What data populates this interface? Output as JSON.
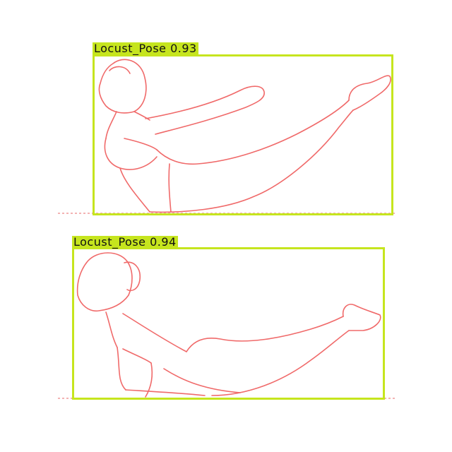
{
  "detections": [
    {
      "label": "Locust_Pose",
      "confidence": "0.93"
    },
    {
      "label": "Locust_Pose",
      "confidence": "0.94"
    }
  ],
  "colors": {
    "box": "#c6e51e",
    "figure_line": "#f06a6a",
    "ground_line": "#f3b3b3",
    "background": "#ffffff"
  }
}
